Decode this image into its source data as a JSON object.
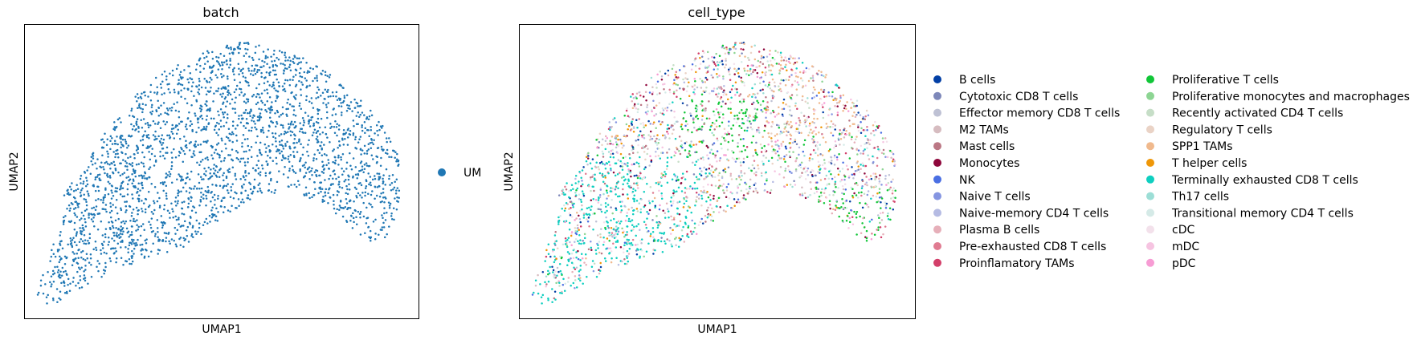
{
  "chart_data": [
    {
      "type": "scatter",
      "title": "batch",
      "xlabel": "UMAP1",
      "ylabel": "UMAP2",
      "legend": "right",
      "grid": false,
      "point_color": "#1f77b4",
      "series": [
        {
          "name": "UM",
          "color": "#1f77b4"
        }
      ]
    },
    {
      "type": "scatter",
      "title": "cell_type",
      "xlabel": "UMAP1",
      "ylabel": "UMAP2",
      "legend": "right",
      "grid": false,
      "series": [
        {
          "name": "B cells",
          "color": "#023fa5"
        },
        {
          "name": "Cytotoxic CD8 T cells",
          "color": "#7d87b9"
        },
        {
          "name": "Effector memory CD8 T cells",
          "color": "#bec1d4"
        },
        {
          "name": "M2 TAMs",
          "color": "#d6bcc0"
        },
        {
          "name": "Mast cells",
          "color": "#bb7784"
        },
        {
          "name": "Monocytes",
          "color": "#8e063b"
        },
        {
          "name": "NK",
          "color": "#4a6fe3"
        },
        {
          "name": "Naive T cells",
          "color": "#8595e1"
        },
        {
          "name": "Naive-memory CD4 T cells",
          "color": "#b5bbe3"
        },
        {
          "name": "Plasma B cells",
          "color": "#e6afb9"
        },
        {
          "name": "Pre-exhausted CD8 T cells",
          "color": "#e07b91"
        },
        {
          "name": "Proinflamatory TAMs",
          "color": "#d33f6a"
        },
        {
          "name": "Proliferative T cells",
          "color": "#11c638"
        },
        {
          "name": "Proliferative monocytes and macrophages",
          "color": "#8dd593"
        },
        {
          "name": "Recently activated CD4 T cells",
          "color": "#c6dec7"
        },
        {
          "name": "Regulatory T cells",
          "color": "#ead3c6"
        },
        {
          "name": "SPP1 TAMs",
          "color": "#f0b98d"
        },
        {
          "name": "T helper cells",
          "color": "#ef9708"
        },
        {
          "name": "Terminally exhausted CD8 T cells",
          "color": "#0fcfc0"
        },
        {
          "name": "Th17 cells",
          "color": "#9cded6"
        },
        {
          "name": "Transitional memory CD4 T cells",
          "color": "#d5eae7"
        },
        {
          "name": "cDC",
          "color": "#f3e1eb"
        },
        {
          "name": "mDC",
          "color": "#f6c4e1"
        },
        {
          "name": "pDC",
          "color": "#f79cd4"
        }
      ]
    }
  ]
}
